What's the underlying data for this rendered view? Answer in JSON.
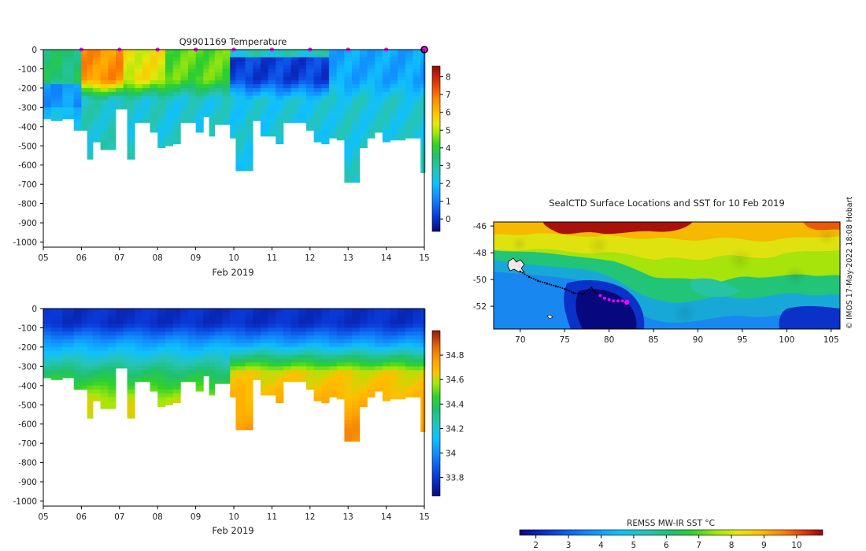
{
  "panel_temperature": {
    "title": "Q9901169  Temperature",
    "xlabel": "Feb 2019",
    "x_ticks": [
      "05",
      "06",
      "07",
      "08",
      "09",
      "10",
      "11",
      "12",
      "13",
      "14",
      "15"
    ],
    "y_ticks": [
      "0",
      "-100",
      "-200",
      "-300",
      "-400",
      "-500",
      "-600",
      "-700",
      "-800",
      "-900",
      "-1000"
    ],
    "colorbar_ticks": [
      "0",
      "1",
      "2",
      "3",
      "4",
      "5",
      "6",
      "7",
      "8"
    ]
  },
  "panel_salinity": {
    "xlabel": "Feb 2019",
    "x_ticks": [
      "05",
      "06",
      "07",
      "08",
      "09",
      "10",
      "11",
      "12",
      "13",
      "14",
      "15"
    ],
    "y_ticks": [
      "0",
      "-100",
      "-200",
      "-300",
      "-400",
      "-500",
      "-600",
      "-700",
      "-800",
      "-900",
      "-1000"
    ],
    "colorbar_ticks": [
      "33.8",
      "34",
      "34.2",
      "34.4",
      "34.6",
      "34.8"
    ]
  },
  "map": {
    "title": "SealCTD Surface Locations and SST for 10 Feb 2019",
    "y_ticks": [
      "-46",
      "-48",
      "-50",
      "-52"
    ],
    "x_ticks": [
      "70",
      "75",
      "80",
      "85",
      "90",
      "95",
      "100",
      "105"
    ],
    "credit": "© IMOS 17-May-2022 18:08 Hobart",
    "colorbar_label": "REMSS MW-IR SST °C",
    "colorbar_ticks": [
      "2",
      "3",
      "4",
      "5",
      "6",
      "7",
      "8",
      "9",
      "10"
    ]
  },
  "chart_data": [
    {
      "type": "heatmap",
      "title": "Q9901169  Temperature",
      "xlabel": "Feb 2019",
      "ylabel": "",
      "x_range_day": [
        5,
        15
      ],
      "ylim": [
        -1020,
        0
      ],
      "colorbar_range": [
        -0.7,
        8.6
      ],
      "marker_days": [
        6,
        7,
        8,
        9,
        10,
        11,
        12,
        13,
        14
      ],
      "profiles": [
        {
          "day": 5.0,
          "depth": 360
        },
        {
          "day": 5.2,
          "depth": 370
        },
        {
          "day": 5.5,
          "depth": 360
        },
        {
          "day": 5.8,
          "depth": 420
        },
        {
          "day": 6.0,
          "depth": 420
        },
        {
          "day": 6.15,
          "depth": 570
        },
        {
          "day": 6.3,
          "depth": 480
        },
        {
          "day": 6.5,
          "depth": 520
        },
        {
          "day": 6.7,
          "depth": 520
        },
        {
          "day": 6.9,
          "depth": 310
        },
        {
          "day": 7.1,
          "depth": 310
        },
        {
          "day": 7.2,
          "depth": 570
        },
        {
          "day": 7.4,
          "depth": 380
        },
        {
          "day": 7.6,
          "depth": 380
        },
        {
          "day": 7.8,
          "depth": 430
        },
        {
          "day": 8.0,
          "depth": 510
        },
        {
          "day": 8.2,
          "depth": 500
        },
        {
          "day": 8.4,
          "depth": 490
        },
        {
          "day": 8.6,
          "depth": 380
        },
        {
          "day": 8.8,
          "depth": 380
        },
        {
          "day": 9.0,
          "depth": 430
        },
        {
          "day": 9.2,
          "depth": 350
        },
        {
          "day": 9.35,
          "depth": 450
        },
        {
          "day": 9.5,
          "depth": 390
        },
        {
          "day": 9.7,
          "depth": 390
        },
        {
          "day": 9.9,
          "depth": 460
        },
        {
          "day": 10.05,
          "depth": 630
        },
        {
          "day": 10.3,
          "depth": 630
        },
        {
          "day": 10.5,
          "depth": 370
        },
        {
          "day": 10.7,
          "depth": 450
        },
        {
          "day": 10.9,
          "depth": 450
        },
        {
          "day": 11.1,
          "depth": 490
        },
        {
          "day": 11.3,
          "depth": 380
        },
        {
          "day": 11.5,
          "depth": 380
        },
        {
          "day": 11.7,
          "depth": 380
        },
        {
          "day": 11.9,
          "depth": 420
        },
        {
          "day": 12.1,
          "depth": 480
        },
        {
          "day": 12.3,
          "depth": 490
        },
        {
          "day": 12.5,
          "depth": 460
        },
        {
          "day": 12.7,
          "depth": 470
        },
        {
          "day": 12.9,
          "depth": 690
        },
        {
          "day": 13.1,
          "depth": 690
        },
        {
          "day": 13.3,
          "depth": 510
        },
        {
          "day": 13.5,
          "depth": 460
        },
        {
          "day": 13.7,
          "depth": 430
        },
        {
          "day": 13.9,
          "depth": 480
        },
        {
          "day": 14.1,
          "depth": 470
        },
        {
          "day": 14.3,
          "depth": 470
        },
        {
          "day": 14.5,
          "depth": 460
        },
        {
          "day": 14.7,
          "depth": 460
        },
        {
          "day": 14.9,
          "depth": 640
        }
      ]
    },
    {
      "type": "heatmap",
      "title": "",
      "xlabel": "Feb 2019",
      "ylabel": "",
      "x_range_day": [
        5,
        15
      ],
      "ylim": [
        -1020,
        0
      ],
      "colorbar_range": [
        33.65,
        35.0
      ],
      "note": "same profile days and depths as the temperature panel"
    },
    {
      "type": "heatmap",
      "title": "SealCTD Surface Locations and SST for 10 Feb 2019",
      "xlim": [
        67,
        106
      ],
      "ylim": [
        -53.7,
        -45.7
      ],
      "colorbar_label": "REMSS MW-IR SST °C",
      "colorbar_range": [
        1.5,
        10.8
      ],
      "track": [
        [
          70.0,
          -49.4
        ],
        [
          71.0,
          -49.8
        ],
        [
          72.0,
          -50.1
        ],
        [
          73.0,
          -50.3
        ],
        [
          74.0,
          -50.5
        ],
        [
          75.0,
          -50.7
        ],
        [
          76.0,
          -51.0
        ],
        [
          77.0,
          -51.1
        ],
        [
          78.0,
          -50.6
        ],
        [
          78.5,
          -51.0
        ]
      ],
      "recent_track": [
        [
          79.0,
          -51.2
        ],
        [
          79.5,
          -51.4
        ],
        [
          80.0,
          -51.5
        ],
        [
          80.5,
          -51.6
        ],
        [
          81.0,
          -51.6
        ],
        [
          81.5,
          -51.6
        ]
      ],
      "last_position": [
        82.0,
        -51.7
      ]
    }
  ]
}
